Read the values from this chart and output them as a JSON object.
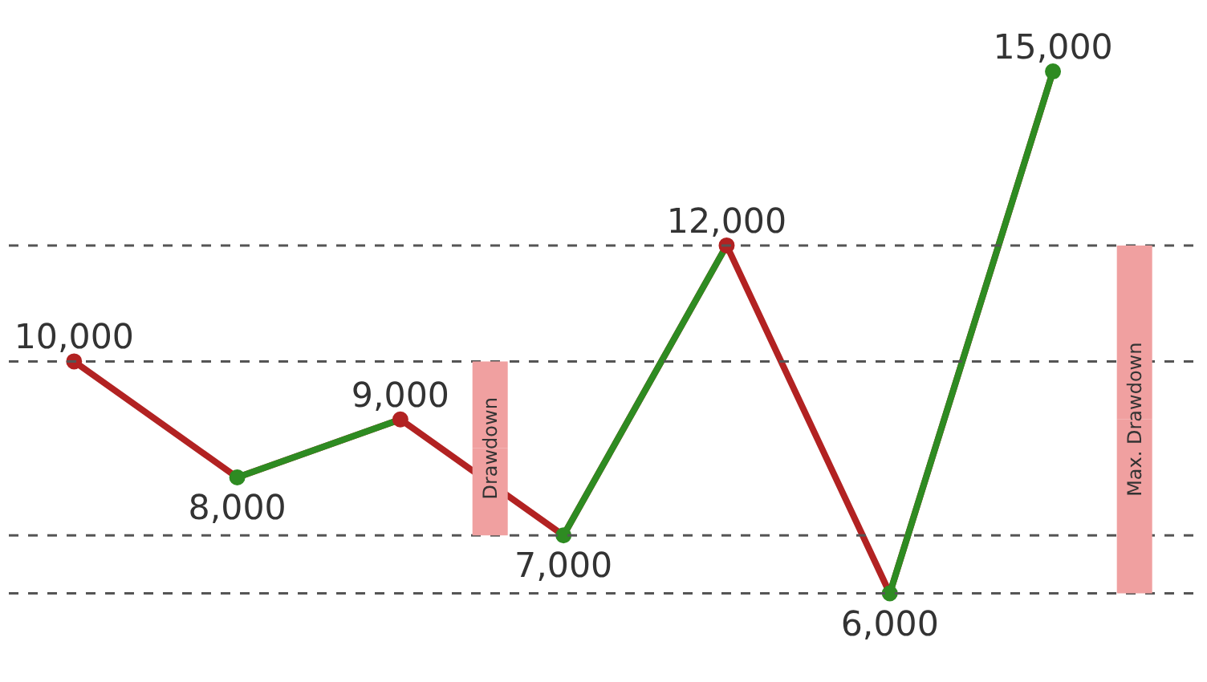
{
  "chart_data": {
    "type": "line",
    "categories": [
      null,
      null,
      null,
      null,
      null,
      null,
      null
    ],
    "series": [
      {
        "color": "#b22222",
        "colors": [
          "#b22222",
          "#2e8b22",
          "#b22222",
          "#2e8b22",
          "#b22222",
          "#2e8b22",
          "#2e8b22"
        ],
        "values": [
          10000,
          8000,
          9000,
          7000,
          12000,
          6000,
          15000
        ],
        "value_labels": [
          "10,000",
          "8,000",
          "9,000",
          "7,000",
          "12,000",
          "6,000",
          "15,000"
        ]
      }
    ],
    "ref_lines": [
      {
        "axis": "y",
        "value": 10000,
        "color": "#555555",
        "line_style": "dashed"
      },
      {
        "axis": "y",
        "value": 7000,
        "color": "#555555",
        "line_style": "dashed"
      },
      {
        "axis": "y",
        "value": 12000,
        "color": "#555555",
        "line_style": "dashed"
      },
      {
        "axis": "y",
        "value": 6000,
        "color": "#555555",
        "line_style": "dashed"
      }
    ],
    "annotations": [
      "Drawdown",
      "Max. Drawdown"
    ],
    "tick_labels": false,
    "marker": "circle"
  }
}
